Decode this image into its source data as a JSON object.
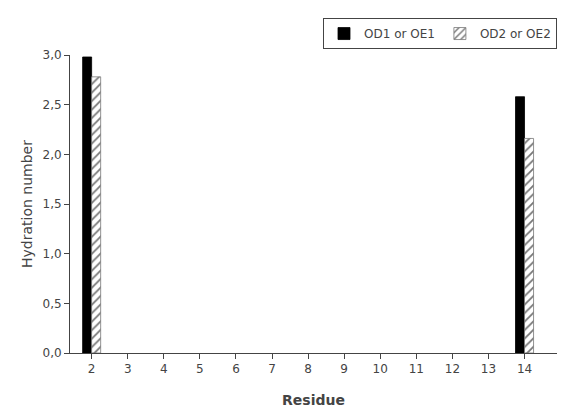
{
  "chart_data": {
    "type": "bar",
    "x": [
      2,
      14
    ],
    "series": [
      {
        "name": "OD1 or OE1",
        "color": "#000000",
        "values": [
          2.98,
          2.58
        ]
      },
      {
        "name": "OD2 or OE2",
        "color": "#ffffff",
        "values": [
          2.78,
          2.16
        ]
      }
    ],
    "xlabel": "Residue",
    "ylabel": "Hydration number",
    "xlim": [
      1.4,
      14.9
    ],
    "xticks": [
      2,
      3,
      4,
      5,
      6,
      7,
      8,
      9,
      10,
      11,
      12,
      13,
      14
    ],
    "ylim": [
      0,
      3.0
    ],
    "yticks": [
      {
        "value": 0.0,
        "label": "0,0"
      },
      {
        "value": 0.5,
        "label": "0,5"
      },
      {
        "value": 1.0,
        "label": "1,0"
      },
      {
        "value": 1.5,
        "label": "1,5"
      },
      {
        "value": 2.0,
        "label": "2,0"
      },
      {
        "value": 2.5,
        "label": "2,5"
      },
      {
        "value": 3.0,
        "label": "3,0"
      }
    ],
    "grid": false,
    "legend": "upper right"
  }
}
